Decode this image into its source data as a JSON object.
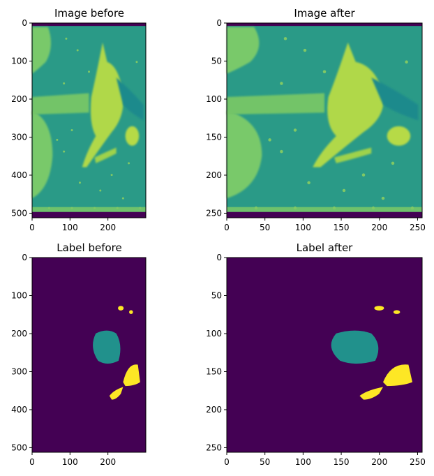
{
  "chart_data": [
    {
      "type": "heatmap",
      "title": "Image before",
      "kind": "image",
      "xlim": [
        0,
        300
      ],
      "ylim": [
        512,
        0
      ],
      "xticks": [
        0,
        100,
        200
      ],
      "yticks": [
        0,
        100,
        200,
        300,
        400,
        500
      ],
      "colormap": "viridis"
    },
    {
      "type": "heatmap",
      "title": "Image after",
      "kind": "image",
      "xlim": [
        0,
        256
      ],
      "ylim": [
        256,
        0
      ],
      "xticks": [
        0,
        50,
        100,
        150,
        200,
        250
      ],
      "yticks": [
        0,
        50,
        100,
        150,
        200,
        250
      ],
      "colormap": "viridis"
    },
    {
      "type": "heatmap",
      "title": "Label before",
      "kind": "label",
      "xlim": [
        0,
        300
      ],
      "ylim": [
        512,
        0
      ],
      "xticks": [
        0,
        100,
        200
      ],
      "yticks": [
        0,
        100,
        200,
        300,
        400,
        500
      ],
      "colormap": "viridis"
    },
    {
      "type": "heatmap",
      "title": "Label after",
      "kind": "label",
      "xlim": [
        0,
        256
      ],
      "ylim": [
        256,
        0
      ],
      "xticks": [
        0,
        50,
        100,
        150,
        200,
        250
      ],
      "yticks": [
        0,
        50,
        100,
        150,
        200,
        250
      ],
      "colormap": "viridis"
    }
  ],
  "colors": {
    "viridis_dark": "#440154",
    "viridis_teal": "#21918c",
    "viridis_green": "#5ec962",
    "viridis_yellow": "#fde725"
  }
}
